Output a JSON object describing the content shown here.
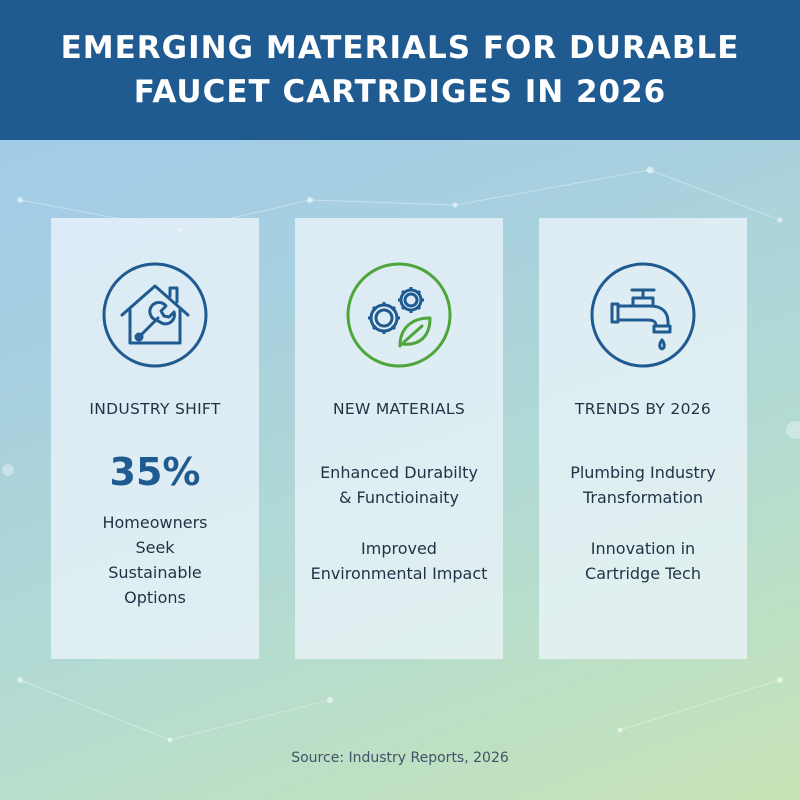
{
  "header": {
    "title_line1": "EMERGING MATERIALS FOR DURABLE",
    "title_line2": "FAUCET CARTRDIGES IN 2026"
  },
  "cards": [
    {
      "icon": "house-wrench-icon",
      "title": "INDUSTRY SHIFT",
      "stat": "35%",
      "stat_desc_lines": [
        "Homeowners",
        "Seek",
        "Sustainable",
        "Options"
      ]
    },
    {
      "icon": "gears-leaf-icon",
      "title": "NEW MATERIALS",
      "para1_lines": [
        "Enhanced Durabilty",
        "& Functioinaity"
      ],
      "para2_lines": [
        "Improved",
        "Environmental Impact"
      ]
    },
    {
      "icon": "faucet-icon",
      "title": "TRENDS BY 2026",
      "para1_lines": [
        "Plumbing Industry",
        "Transformation"
      ],
      "para2_lines": [
        "Innovation in",
        "Cartridge Tech"
      ]
    }
  ],
  "source": "Source: Industry Reports, 2026",
  "colors": {
    "header_bg": "#1f5b91",
    "icon_blue": "#1f5b91",
    "icon_green": "#4ea63a",
    "text_dark": "#1f3346"
  }
}
